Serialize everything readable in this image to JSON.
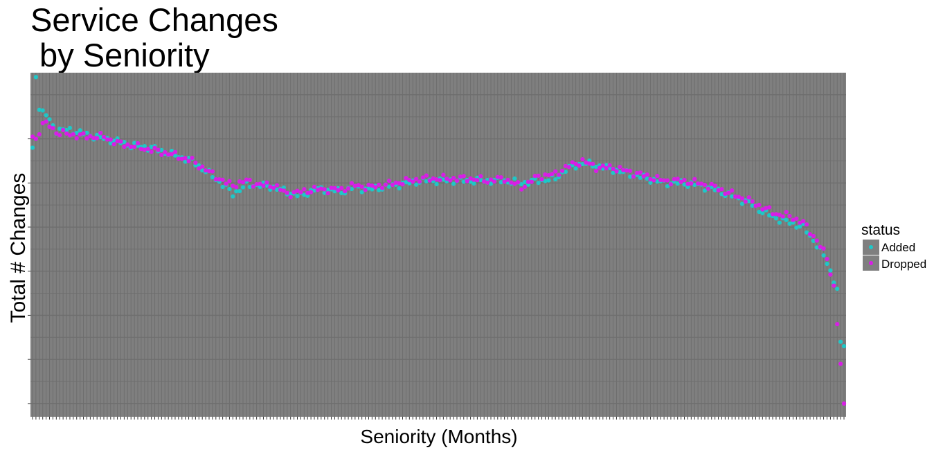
{
  "chart_data": {
    "type": "scatter",
    "title_lines": [
      "Service Changes",
      " by Seniority"
    ],
    "xlabel": "Seniority (Months)",
    "ylabel": "Total # Changes",
    "x_tick_labels_shown": false,
    "y_tick_labels_shown": false,
    "x_count": 240,
    "y_level_bottom_tick": 0,
    "ylim": [
      -0.3,
      7.5
    ],
    "grid": true,
    "panel_background": "#7f7f7f",
    "grid_color": "#6e6e6e",
    "legend": {
      "title": "status",
      "placement": "right",
      "entries": [
        {
          "label": "Added",
          "color": "#1fc7c7"
        },
        {
          "label": "Dropped",
          "color": "#d81ee6"
        }
      ]
    },
    "series": [
      {
        "name": "Added",
        "color": "#1fc7c7",
        "keypoints": [
          [
            1,
            5.8
          ],
          [
            2,
            7.4
          ],
          [
            3,
            6.7
          ],
          [
            4,
            6.6
          ],
          [
            5,
            6.55
          ],
          [
            6,
            6.4
          ],
          [
            8,
            6.2
          ],
          [
            12,
            6.2
          ],
          [
            17,
            6.1
          ],
          [
            22,
            6.0
          ],
          [
            26,
            5.95
          ],
          [
            30,
            5.85
          ],
          [
            36,
            5.8
          ],
          [
            42,
            5.65
          ],
          [
            48,
            5.5
          ],
          [
            54,
            5.15
          ],
          [
            58,
            4.9
          ],
          [
            60,
            4.75
          ],
          [
            64,
            4.95
          ],
          [
            68,
            4.95
          ],
          [
            72,
            4.9
          ],
          [
            76,
            4.8
          ],
          [
            80,
            4.7
          ],
          [
            84,
            4.85
          ],
          [
            88,
            4.85
          ],
          [
            92,
            4.8
          ],
          [
            96,
            4.9
          ],
          [
            100,
            4.85
          ],
          [
            104,
            4.9
          ],
          [
            108,
            4.95
          ],
          [
            112,
            5.0
          ],
          [
            116,
            5.05
          ],
          [
            120,
            5.05
          ],
          [
            125,
            5.05
          ],
          [
            130,
            5.05
          ],
          [
            135,
            5.05
          ],
          [
            140,
            5.05
          ],
          [
            145,
            5.0
          ],
          [
            150,
            5.05
          ],
          [
            155,
            5.1
          ],
          [
            158,
            5.3
          ],
          [
            163,
            5.45
          ],
          [
            167,
            5.4
          ],
          [
            172,
            5.3
          ],
          [
            177,
            5.2
          ],
          [
            182,
            5.1
          ],
          [
            187,
            5.0
          ],
          [
            192,
            5.0
          ],
          [
            197,
            4.95
          ],
          [
            202,
            4.85
          ],
          [
            207,
            4.7
          ],
          [
            212,
            4.55
          ],
          [
            216,
            4.35
          ],
          [
            220,
            4.2
          ],
          [
            224,
            4.1
          ],
          [
            228,
            4.0
          ],
          [
            232,
            3.6
          ],
          [
            235,
            3.2
          ],
          [
            237,
            2.8
          ],
          [
            238,
            2.6
          ],
          [
            239,
            1.4
          ],
          [
            240,
            1.3
          ]
        ]
      },
      {
        "name": "Dropped",
        "color": "#d81ee6",
        "keypoints": [
          [
            1,
            6.05
          ],
          [
            2,
            6.0
          ],
          [
            4,
            6.35
          ],
          [
            6,
            6.3
          ],
          [
            8,
            6.15
          ],
          [
            12,
            6.1
          ],
          [
            17,
            6.05
          ],
          [
            22,
            6.05
          ],
          [
            26,
            5.9
          ],
          [
            30,
            5.85
          ],
          [
            36,
            5.75
          ],
          [
            42,
            5.65
          ],
          [
            48,
            5.5
          ],
          [
            54,
            5.2
          ],
          [
            58,
            5.0
          ],
          [
            60,
            4.95
          ],
          [
            64,
            5.05
          ],
          [
            68,
            4.95
          ],
          [
            72,
            4.95
          ],
          [
            76,
            4.75
          ],
          [
            80,
            4.8
          ],
          [
            84,
            4.85
          ],
          [
            88,
            4.85
          ],
          [
            92,
            4.85
          ],
          [
            96,
            4.95
          ],
          [
            100,
            4.9
          ],
          [
            104,
            4.95
          ],
          [
            108,
            5.0
          ],
          [
            112,
            5.05
          ],
          [
            116,
            5.1
          ],
          [
            120,
            5.1
          ],
          [
            125,
            5.1
          ],
          [
            130,
            5.1
          ],
          [
            135,
            5.05
          ],
          [
            140,
            5.1
          ],
          [
            145,
            4.9
          ],
          [
            150,
            5.15
          ],
          [
            155,
            5.2
          ],
          [
            158,
            5.35
          ],
          [
            163,
            5.5
          ],
          [
            167,
            5.35
          ],
          [
            172,
            5.35
          ],
          [
            177,
            5.25
          ],
          [
            182,
            5.15
          ],
          [
            187,
            5.05
          ],
          [
            192,
            5.05
          ],
          [
            197,
            5.0
          ],
          [
            202,
            4.9
          ],
          [
            207,
            4.75
          ],
          [
            212,
            4.6
          ],
          [
            216,
            4.45
          ],
          [
            220,
            4.3
          ],
          [
            224,
            4.25
          ],
          [
            228,
            4.1
          ],
          [
            232,
            3.7
          ],
          [
            235,
            3.3
          ],
          [
            237,
            2.65
          ],
          [
            238,
            1.8
          ],
          [
            239,
            0.9
          ],
          [
            240,
            0.0
          ]
        ]
      }
    ]
  }
}
